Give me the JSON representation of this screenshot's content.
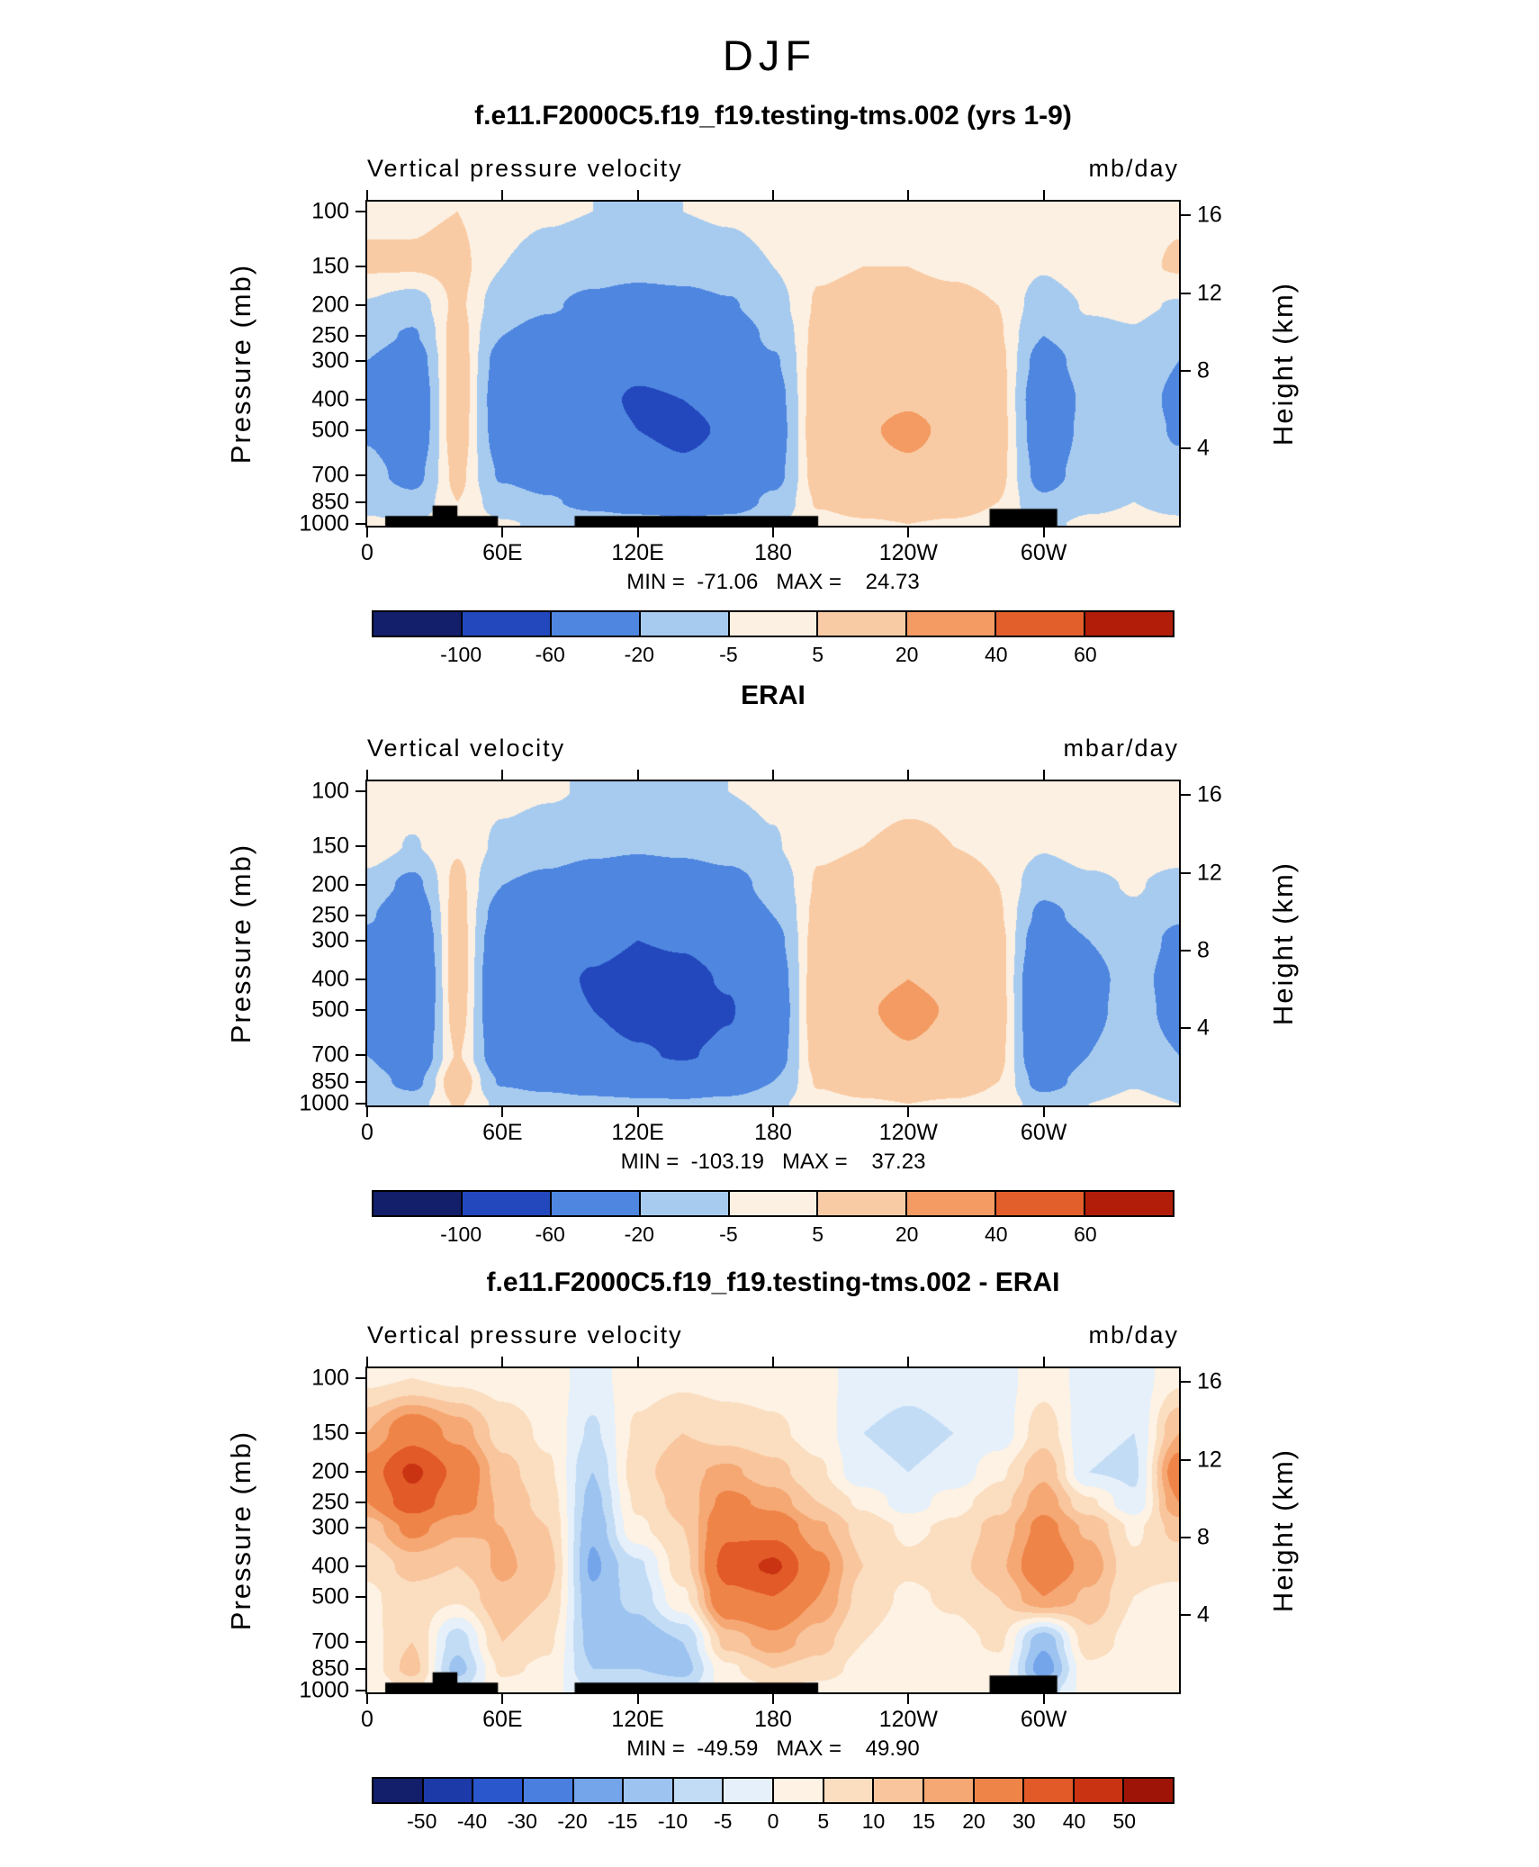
{
  "figure_title": "DJF",
  "chart_data": [
    {
      "type": "heatmap",
      "title": "f.e11.F2000C5.f19_f19.testing-tms.002 (yrs 1-9)",
      "field_label": "Vertical  pressure  velocity",
      "units": "mb/day",
      "stats_text": "MIN =  -71.06   MAX =    24.73",
      "y_axis_left": {
        "label": "Pressure  (mb)",
        "ticks": [
          100,
          150,
          200,
          250,
          300,
          400,
          500,
          700,
          850,
          1000
        ]
      },
      "y_axis_right": {
        "label": "Height  (km)",
        "ticks": [
          16,
          12,
          8,
          4
        ]
      },
      "x_axis": {
        "ticks": [
          {
            "deg": 0,
            "label": "0"
          },
          {
            "deg": 60,
            "label": "60E"
          },
          {
            "deg": 120,
            "label": "120E"
          },
          {
            "deg": 180,
            "label": "180"
          },
          {
            "deg": 240,
            "label": "120W"
          },
          {
            "deg": 300,
            "label": "60W"
          }
        ]
      },
      "colorbar": {
        "levels": [
          -100,
          -60,
          -20,
          -5,
          5,
          20,
          40,
          60
        ],
        "labels": [
          "-100",
          "-60",
          "-20",
          "-5",
          "5",
          "20",
          "40",
          "60"
        ],
        "colors": [
          "#131f6b",
          "#2348bd",
          "#4e86e0",
          "#a7cbef",
          "#fcf0e2",
          "#f9cba4",
          "#f39b62",
          "#e25f2c",
          "#b21d0a"
        ]
      },
      "grid": {
        "lons": [
          0,
          20,
          40,
          60,
          80,
          100,
          120,
          140,
          160,
          180,
          200,
          220,
          240,
          260,
          280,
          300,
          320,
          340,
          360
        ],
        "plevs": [
          100,
          150,
          200,
          250,
          300,
          400,
          500,
          700,
          850,
          1000
        ],
        "values": [
          [
            4,
            4,
            5,
            -2,
            -4,
            -5,
            -6,
            -5,
            -4,
            -2,
            2,
            3,
            3,
            3,
            2,
            0,
            2,
            2,
            4
          ],
          [
            6,
            6,
            8,
            -5,
            -9,
            -12,
            -14,
            -12,
            -9,
            -5,
            4,
            5,
            5,
            4,
            3,
            -4,
            3,
            3,
            6
          ],
          [
            -6,
            -12,
            7,
            -12,
            -18,
            -25,
            -30,
            -28,
            -22,
            -10,
            6,
            8,
            8,
            7,
            5,
            -12,
            -4,
            -3,
            -6
          ],
          [
            -14,
            -22,
            10,
            -20,
            -28,
            -38,
            -45,
            -42,
            -35,
            -16,
            8,
            11,
            12,
            10,
            6,
            -20,
            -8,
            -6,
            -14
          ],
          [
            -20,
            -32,
            12,
            -28,
            -35,
            -48,
            -55,
            -52,
            -45,
            -22,
            10,
            14,
            15,
            13,
            8,
            -28,
            -12,
            -9,
            -20
          ],
          [
            -24,
            -38,
            13,
            -32,
            -40,
            -55,
            -62,
            -60,
            -55,
            -28,
            12,
            17,
            19,
            16,
            9,
            -36,
            -16,
            -12,
            -24
          ],
          [
            -22,
            -36,
            12,
            -30,
            -38,
            -52,
            -60,
            -64,
            -58,
            -30,
            13,
            19,
            22,
            18,
            10,
            -34,
            -15,
            -11,
            -22
          ],
          [
            -15,
            -26,
            8,
            -22,
            -30,
            -42,
            -50,
            -56,
            -50,
            -26,
            10,
            16,
            18,
            15,
            8,
            -27,
            -12,
            -8,
            -15
          ],
          [
            -9,
            -15,
            5,
            -12,
            -18,
            -26,
            -32,
            -36,
            -32,
            -16,
            6,
            10,
            12,
            10,
            5,
            -17,
            -8,
            -5,
            -9
          ],
          [
            -3,
            -5,
            2,
            -4,
            -7,
            -10,
            -12,
            -14,
            -12,
            -6,
            2,
            4,
            5,
            4,
            2,
            -7,
            -3,
            -2,
            -3
          ]
        ]
      },
      "topo": [
        {
          "lon0": 8,
          "lon1": 58,
          "h": 0.03
        },
        {
          "lon0": 29,
          "lon1": 40,
          "h": 0.062
        },
        {
          "lon0": 92,
          "lon1": 200,
          "h": 0.03
        },
        {
          "lon0": 276,
          "lon1": 306,
          "h": 0.052
        }
      ]
    },
    {
      "type": "heatmap",
      "title": "ERAI",
      "field_label": "Vertical  velocity",
      "units": "mbar/day",
      "stats_text": "MIN =  -103.19   MAX =    37.23",
      "y_axis_left": {
        "label": "Pressure  (mb)",
        "ticks": [
          100,
          150,
          200,
          250,
          300,
          400,
          500,
          700,
          850,
          1000
        ]
      },
      "y_axis_right": {
        "label": "Height  (km)",
        "ticks": [
          16,
          12,
          8,
          4
        ]
      },
      "x_axis": {
        "ticks": [
          {
            "deg": 0,
            "label": "0"
          },
          {
            "deg": 60,
            "label": "60E"
          },
          {
            "deg": 120,
            "label": "120E"
          },
          {
            "deg": 180,
            "label": "180"
          },
          {
            "deg": 240,
            "label": "120W"
          },
          {
            "deg": 300,
            "label": "60W"
          }
        ]
      },
      "colorbar": {
        "levels": [
          -100,
          -60,
          -20,
          -5,
          5,
          20,
          40,
          60
        ],
        "labels": [
          "-100",
          "-60",
          "-20",
          "-5",
          "5",
          "20",
          "40",
          "60"
        ],
        "colors": [
          "#131f6b",
          "#2348bd",
          "#4e86e0",
          "#a7cbef",
          "#fcf0e2",
          "#f9cba4",
          "#f39b62",
          "#e25f2c",
          "#b21d0a"
        ]
      },
      "grid": {
        "lons": [
          0,
          20,
          40,
          60,
          80,
          100,
          120,
          140,
          160,
          180,
          200,
          220,
          240,
          260,
          280,
          300,
          320,
          340,
          360
        ],
        "plevs": [
          100,
          150,
          200,
          250,
          300,
          400,
          500,
          700,
          850,
          1000
        ],
        "values": [
          [
            3,
            2,
            2,
            -2,
            -4,
            -6,
            -7,
            -6,
            -5,
            -3,
            2,
            3,
            4,
            4,
            3,
            1,
            2,
            3,
            3
          ],
          [
            2,
            -6,
            4,
            -8,
            -12,
            -16,
            -18,
            -16,
            -12,
            -6,
            4,
            5,
            6,
            5,
            4,
            -4,
            1,
            2,
            2
          ],
          [
            -10,
            -25,
            8,
            -20,
            -25,
            -32,
            -36,
            -34,
            -28,
            -14,
            6,
            8,
            9,
            8,
            5,
            -15,
            -8,
            -4,
            -10
          ],
          [
            -18,
            -38,
            10,
            -30,
            -36,
            -45,
            -50,
            -48,
            -40,
            -20,
            8,
            11,
            13,
            11,
            6,
            -25,
            -14,
            -7,
            -18
          ],
          [
            -25,
            -48,
            12,
            -38,
            -44,
            -54,
            -60,
            -58,
            -50,
            -26,
            10,
            14,
            16,
            14,
            8,
            -34,
            -20,
            -10,
            -25
          ],
          [
            -30,
            -56,
            13,
            -44,
            -52,
            -62,
            -68,
            -66,
            -58,
            -32,
            12,
            17,
            20,
            17,
            9,
            -44,
            -26,
            -13,
            -30
          ],
          [
            -28,
            -52,
            11,
            -42,
            -50,
            -60,
            -68,
            -74,
            -62,
            -35,
            13,
            19,
            23,
            19,
            10,
            -46,
            -25,
            -12,
            -28
          ],
          [
            -20,
            -40,
            6,
            -34,
            -42,
            -52,
            -58,
            -62,
            -55,
            -30,
            10,
            16,
            19,
            16,
            8,
            -40,
            -20,
            -9,
            -20
          ],
          [
            -12,
            -26,
            14,
            -22,
            -28,
            -35,
            -40,
            -42,
            -36,
            -20,
            6,
            10,
            13,
            11,
            5,
            -28,
            -13,
            -6,
            -12
          ],
          [
            -5,
            -10,
            6,
            -8,
            -11,
            -14,
            -16,
            -17,
            -14,
            -8,
            2,
            4,
            5,
            4,
            2,
            -11,
            -5,
            -2,
            -5
          ]
        ]
      }
    },
    {
      "type": "heatmap",
      "title": "f.e11.F2000C5.f19_f19.testing-tms.002 - ERAI",
      "field_label": "Vertical  pressure  velocity",
      "units": "mb/day",
      "stats_text": "MIN =  -49.59   MAX =    49.90",
      "y_axis_left": {
        "label": "Pressure  (mb)",
        "ticks": [
          100,
          150,
          200,
          250,
          300,
          400,
          500,
          700,
          850,
          1000
        ]
      },
      "y_axis_right": {
        "label": "Height  (km)",
        "ticks": [
          16,
          12,
          8,
          4
        ]
      },
      "x_axis": {
        "ticks": [
          {
            "deg": 0,
            "label": "0"
          },
          {
            "deg": 60,
            "label": "60E"
          },
          {
            "deg": 120,
            "label": "120E"
          },
          {
            "deg": 180,
            "label": "180"
          },
          {
            "deg": 240,
            "label": "120W"
          },
          {
            "deg": 300,
            "label": "60W"
          }
        ]
      },
      "colorbar": {
        "levels": [
          -50,
          -40,
          -30,
          -20,
          -15,
          -10,
          -5,
          0,
          5,
          10,
          15,
          20,
          30,
          40,
          50
        ],
        "labels": [
          "-50",
          "-40",
          "-30",
          "-20",
          "-15",
          "-10",
          "-5",
          "0",
          "5",
          "10",
          "15",
          "20",
          "30",
          "40",
          "50"
        ],
        "colors": [
          "#131f6b",
          "#1c3aa8",
          "#2b57cc",
          "#4a7fe0",
          "#74a5ea",
          "#9dc3f0",
          "#c3dcf6",
          "#e6f0fa",
          "#fdf2e3",
          "#fbddc0",
          "#f9c59d",
          "#f5a873",
          "#ef8449",
          "#e25a28",
          "#c93312",
          "#9e1508"
        ]
      },
      "grid": {
        "lons": [
          0,
          20,
          40,
          60,
          80,
          100,
          120,
          140,
          160,
          180,
          200,
          220,
          240,
          260,
          280,
          300,
          320,
          340,
          360
        ],
        "plevs": [
          100,
          150,
          200,
          250,
          300,
          400,
          500,
          700,
          850,
          1000
        ],
        "values": [
          [
            4,
            5,
            4,
            3,
            2,
            -2,
            3,
            4,
            3,
            3,
            2,
            -3,
            -4,
            -3,
            -2,
            3,
            -2,
            -3,
            4
          ],
          [
            15,
            26,
            18,
            8,
            4,
            -6,
            6,
            10,
            8,
            6,
            3,
            -5,
            -6,
            -5,
            -3,
            8,
            -4,
            -5,
            15
          ],
          [
            25,
            42,
            28,
            12,
            6,
            -10,
            8,
            14,
            16,
            12,
            6,
            -4,
            -5,
            -4,
            4,
            14,
            -5,
            -6,
            25
          ],
          [
            20,
            36,
            24,
            14,
            8,
            -12,
            6,
            12,
            22,
            18,
            10,
            4,
            -3,
            3,
            8,
            18,
            6,
            -4,
            20
          ],
          [
            12,
            22,
            16,
            15,
            10,
            -14,
            4,
            10,
            28,
            26,
            16,
            8,
            4,
            6,
            12,
            22,
            14,
            4,
            12
          ],
          [
            6,
            12,
            10,
            16,
            12,
            -16,
            -6,
            8,
            34,
            42,
            22,
            10,
            6,
            8,
            14,
            26,
            18,
            6,
            6
          ],
          [
            4,
            8,
            6,
            14,
            10,
            -14,
            -8,
            4,
            28,
            30,
            20,
            8,
            4,
            6,
            10,
            20,
            14,
            5,
            4
          ],
          [
            3,
            10,
            -8,
            10,
            6,
            -12,
            -14,
            -10,
            12,
            18,
            12,
            5,
            2,
            3,
            6,
            -14,
            8,
            3,
            3
          ],
          [
            2,
            12,
            -12,
            6,
            4,
            -10,
            -10,
            -12,
            4,
            10,
            8,
            3,
            1,
            2,
            3,
            -18,
            4,
            2,
            2
          ],
          [
            1,
            5,
            -5,
            3,
            2,
            -5,
            -5,
            -6,
            2,
            4,
            3,
            1,
            0,
            1,
            1,
            -8,
            2,
            1,
            1
          ]
        ]
      },
      "topo": [
        {
          "lon0": 8,
          "lon1": 58,
          "h": 0.03
        },
        {
          "lon0": 29,
          "lon1": 40,
          "h": 0.062
        },
        {
          "lon0": 92,
          "lon1": 200,
          "h": 0.03
        },
        {
          "lon0": 276,
          "lon1": 306,
          "h": 0.052
        }
      ]
    }
  ]
}
